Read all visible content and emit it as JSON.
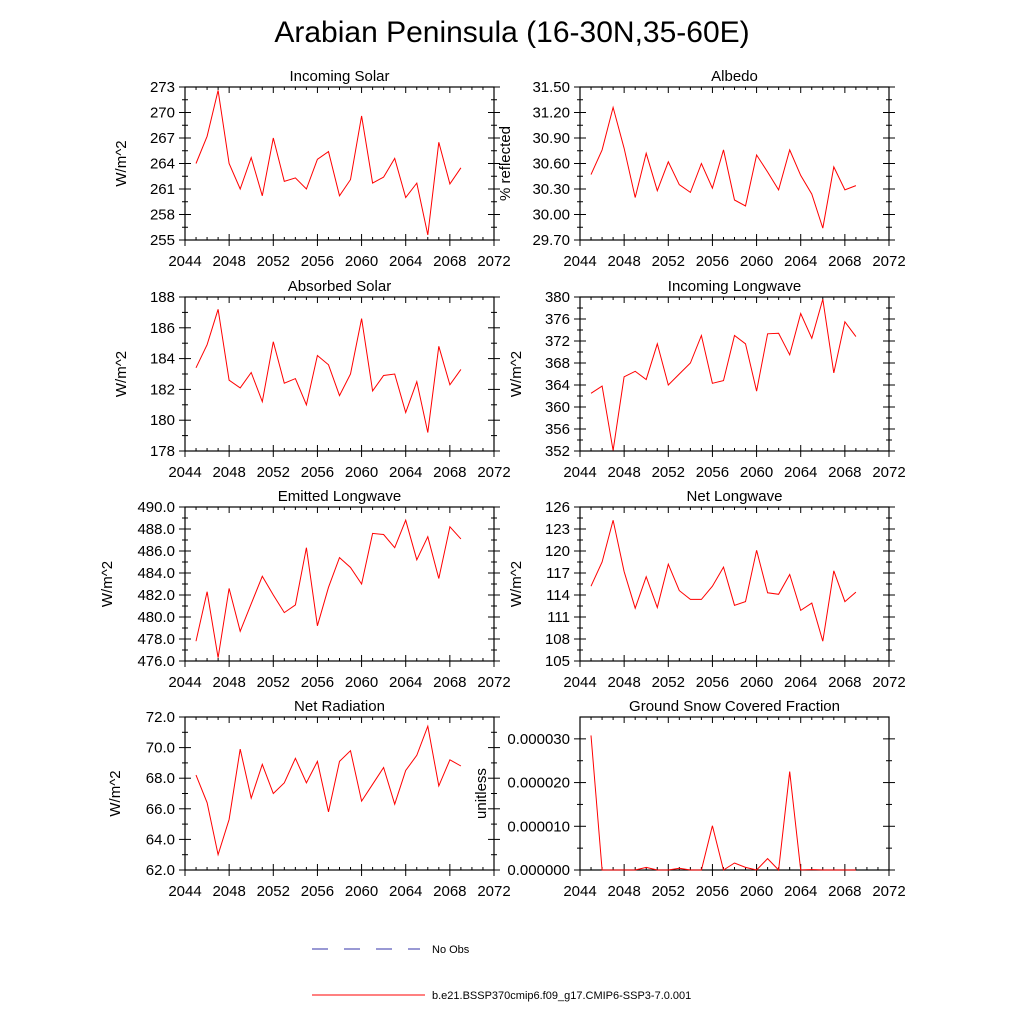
{
  "page": {
    "title": "Arabian Peninsula (16-30N,35-60E)"
  },
  "legend": {
    "items": [
      {
        "label": "No Obs",
        "color": "#3333aa",
        "dash": true
      },
      {
        "label": "b.e21.BSSP370cmip6.f09_g17.CMIP6-SSP3-7.0.001",
        "color": "#ff0000",
        "dash": false
      }
    ]
  },
  "chart_data": [
    {
      "type": "line",
      "title": "Incoming Solar",
      "ylabel": "W/m^2",
      "xlim": [
        2044,
        2072
      ],
      "xticks": [
        "2044",
        "2048",
        "2052",
        "2056",
        "2060",
        "2064",
        "2068",
        "2072"
      ],
      "ylim": [
        255,
        273
      ],
      "yticks": [
        "255",
        "258",
        "261",
        "264",
        "267",
        "270",
        "273"
      ],
      "color": "#ff0000",
      "x": [
        2045,
        2046,
        2047,
        2048,
        2049,
        2050,
        2051,
        2052,
        2053,
        2054,
        2055,
        2056,
        2057,
        2058,
        2059,
        2060,
        2061,
        2062,
        2063,
        2064,
        2065,
        2066,
        2067,
        2068,
        2069
      ],
      "y": [
        264.0,
        267.2,
        272.6,
        264.0,
        261.0,
        264.7,
        260.2,
        267.0,
        261.9,
        262.3,
        261.0,
        264.5,
        265.4,
        260.2,
        262.1,
        269.6,
        261.7,
        262.4,
        264.6,
        260.0,
        261.7,
        255.6,
        266.5,
        261.6,
        263.5
      ]
    },
    {
      "type": "line",
      "title": "Albedo",
      "ylabel": "% reflected",
      "xlim": [
        2044,
        2072
      ],
      "xticks": [
        "2044",
        "2048",
        "2052",
        "2056",
        "2060",
        "2064",
        "2068",
        "2072"
      ],
      "ylim": [
        29.7,
        31.5
      ],
      "yticks": [
        "29.70",
        "30.00",
        "30.30",
        "30.60",
        "30.90",
        "31.20",
        "31.50"
      ],
      "color": "#ff0000",
      "x": [
        2045,
        2046,
        2047,
        2048,
        2049,
        2050,
        2051,
        2052,
        2053,
        2054,
        2055,
        2056,
        2057,
        2058,
        2059,
        2060,
        2061,
        2062,
        2063,
        2064,
        2065,
        2066,
        2067,
        2068,
        2069
      ],
      "y": [
        30.47,
        30.76,
        31.26,
        30.78,
        30.2,
        30.72,
        30.28,
        30.62,
        30.35,
        30.26,
        30.6,
        30.31,
        30.76,
        30.17,
        30.1,
        30.7,
        30.5,
        30.29,
        30.76,
        30.46,
        30.24,
        29.84,
        30.56,
        30.29,
        30.34
      ]
    },
    {
      "type": "line",
      "title": "Absorbed Solar",
      "ylabel": "W/m^2",
      "xlim": [
        2044,
        2072
      ],
      "xticks": [
        "2044",
        "2048",
        "2052",
        "2056",
        "2060",
        "2064",
        "2068",
        "2072"
      ],
      "ylim": [
        178,
        188
      ],
      "yticks": [
        "178",
        "180",
        "182",
        "184",
        "186",
        "188"
      ],
      "color": "#ff0000",
      "x": [
        2045,
        2046,
        2047,
        2048,
        2049,
        2050,
        2051,
        2052,
        2053,
        2054,
        2055,
        2056,
        2057,
        2058,
        2059,
        2060,
        2061,
        2062,
        2063,
        2064,
        2065,
        2066,
        2067,
        2068,
        2069
      ],
      "y": [
        183.4,
        184.9,
        187.2,
        182.6,
        182.1,
        183.1,
        181.2,
        185.1,
        182.4,
        182.7,
        181.0,
        184.2,
        183.6,
        181.6,
        183.0,
        186.6,
        181.9,
        182.9,
        183.0,
        180.5,
        182.5,
        179.2,
        184.8,
        182.3,
        183.3
      ]
    },
    {
      "type": "line",
      "title": "Incoming Longwave",
      "ylabel": "W/m^2",
      "xlim": [
        2044,
        2072
      ],
      "xticks": [
        "2044",
        "2048",
        "2052",
        "2056",
        "2060",
        "2064",
        "2068",
        "2072"
      ],
      "ylim": [
        352,
        380
      ],
      "yticks": [
        "352",
        "356",
        "360",
        "364",
        "368",
        "372",
        "376",
        "380"
      ],
      "color": "#ff0000",
      "x": [
        2045,
        2046,
        2047,
        2048,
        2049,
        2050,
        2051,
        2052,
        2053,
        2054,
        2055,
        2056,
        2057,
        2058,
        2059,
        2060,
        2061,
        2062,
        2063,
        2064,
        2065,
        2066,
        2067,
        2068,
        2069
      ],
      "y": [
        362.5,
        363.8,
        352.1,
        365.5,
        366.5,
        365.0,
        371.5,
        364.0,
        366.0,
        368.0,
        373.0,
        364.3,
        364.8,
        373.0,
        371.5,
        362.9,
        373.3,
        373.4,
        369.5,
        377.0,
        372.5,
        379.6,
        366.2,
        375.5,
        372.8
      ]
    },
    {
      "type": "line",
      "title": "Emitted Longwave",
      "ylabel": "W/m^2",
      "xlim": [
        2044,
        2072
      ],
      "xticks": [
        "2044",
        "2048",
        "2052",
        "2056",
        "2060",
        "2064",
        "2068",
        "2072"
      ],
      "ylim": [
        476.0,
        490.0
      ],
      "yticks": [
        "476.0",
        "478.0",
        "480.0",
        "482.0",
        "484.0",
        "486.0",
        "488.0",
        "490.0"
      ],
      "color": "#ff0000",
      "x": [
        2045,
        2046,
        2047,
        2048,
        2049,
        2050,
        2051,
        2052,
        2053,
        2054,
        2055,
        2056,
        2057,
        2058,
        2059,
        2060,
        2061,
        2062,
        2063,
        2064,
        2065,
        2066,
        2067,
        2068,
        2069
      ],
      "y": [
        477.8,
        482.3,
        476.3,
        482.6,
        478.7,
        481.2,
        483.7,
        482.0,
        480.4,
        481.1,
        486.3,
        479.2,
        482.7,
        485.4,
        484.5,
        483.0,
        487.6,
        487.5,
        486.3,
        488.8,
        485.2,
        487.3,
        483.5,
        488.2,
        487.1
      ]
    },
    {
      "type": "line",
      "title": "Net Longwave",
      "ylabel": "W/m^2",
      "xlim": [
        2044,
        2072
      ],
      "xticks": [
        "2044",
        "2048",
        "2052",
        "2056",
        "2060",
        "2064",
        "2068",
        "2072"
      ],
      "ylim": [
        105,
        126
      ],
      "yticks": [
        "105",
        "108",
        "111",
        "114",
        "117",
        "120",
        "123",
        "126"
      ],
      "color": "#ff0000",
      "x": [
        2045,
        2046,
        2047,
        2048,
        2049,
        2050,
        2051,
        2052,
        2053,
        2054,
        2055,
        2056,
        2057,
        2058,
        2059,
        2060,
        2061,
        2062,
        2063,
        2064,
        2065,
        2066,
        2067,
        2068,
        2069
      ],
      "y": [
        115.2,
        118.5,
        124.2,
        117.2,
        112.2,
        116.5,
        112.3,
        118.2,
        114.6,
        113.4,
        113.4,
        115.2,
        117.8,
        112.6,
        113.1,
        120.1,
        114.3,
        114.1,
        116.8,
        111.9,
        112.9,
        107.7,
        117.3,
        113.1,
        114.4
      ]
    },
    {
      "type": "line",
      "title": "Net Radiation",
      "ylabel": "W/m^2",
      "xlim": [
        2044,
        2072
      ],
      "xticks": [
        "2044",
        "2048",
        "2052",
        "2056",
        "2060",
        "2064",
        "2068",
        "2072"
      ],
      "ylim": [
        62.0,
        72.0
      ],
      "yticks": [
        "62.0",
        "64.0",
        "66.0",
        "68.0",
        "70.0",
        "72.0"
      ],
      "color": "#ff0000",
      "x": [
        2045,
        2046,
        2047,
        2048,
        2049,
        2050,
        2051,
        2052,
        2053,
        2054,
        2055,
        2056,
        2057,
        2058,
        2059,
        2060,
        2061,
        2062,
        2063,
        2064,
        2065,
        2066,
        2067,
        2068,
        2069
      ],
      "y": [
        68.2,
        66.4,
        63.0,
        65.3,
        69.9,
        66.7,
        68.9,
        67.0,
        67.7,
        69.3,
        67.7,
        69.1,
        65.8,
        69.1,
        69.8,
        66.5,
        67.6,
        68.7,
        66.3,
        68.5,
        69.5,
        71.4,
        67.5,
        69.2,
        68.8
      ]
    },
    {
      "type": "line",
      "title": "Ground Snow Covered Fraction",
      "ylabel": "unitless",
      "xlim": [
        2044,
        2072
      ],
      "xticks": [
        "2044",
        "2048",
        "2052",
        "2056",
        "2060",
        "2064",
        "2068",
        "2072"
      ],
      "ylim": [
        0,
        3.5e-05
      ],
      "yticks": [
        "0.000000",
        "0.000010",
        "0.000020",
        "0.000030"
      ],
      "ytick_values": [
        0,
        1e-05,
        2e-05,
        3e-05
      ],
      "color": "#ff0000",
      "x": [
        2045,
        2046,
        2047,
        2048,
        2049,
        2050,
        2051,
        2052,
        2053,
        2054,
        2055,
        2056,
        2057,
        2058,
        2059,
        2060,
        2061,
        2062,
        2063,
        2064,
        2065,
        2066,
        2067,
        2068,
        2069
      ],
      "y": [
        3.08e-05,
        0,
        0,
        0,
        0,
        6e-07,
        0,
        0,
        4e-07,
        0,
        0,
        1.01e-05,
        0,
        1.6e-06,
        6e-07,
        0,
        2.6e-06,
        0,
        2.25e-05,
        0,
        1e-07,
        0,
        0,
        0,
        0
      ]
    }
  ]
}
